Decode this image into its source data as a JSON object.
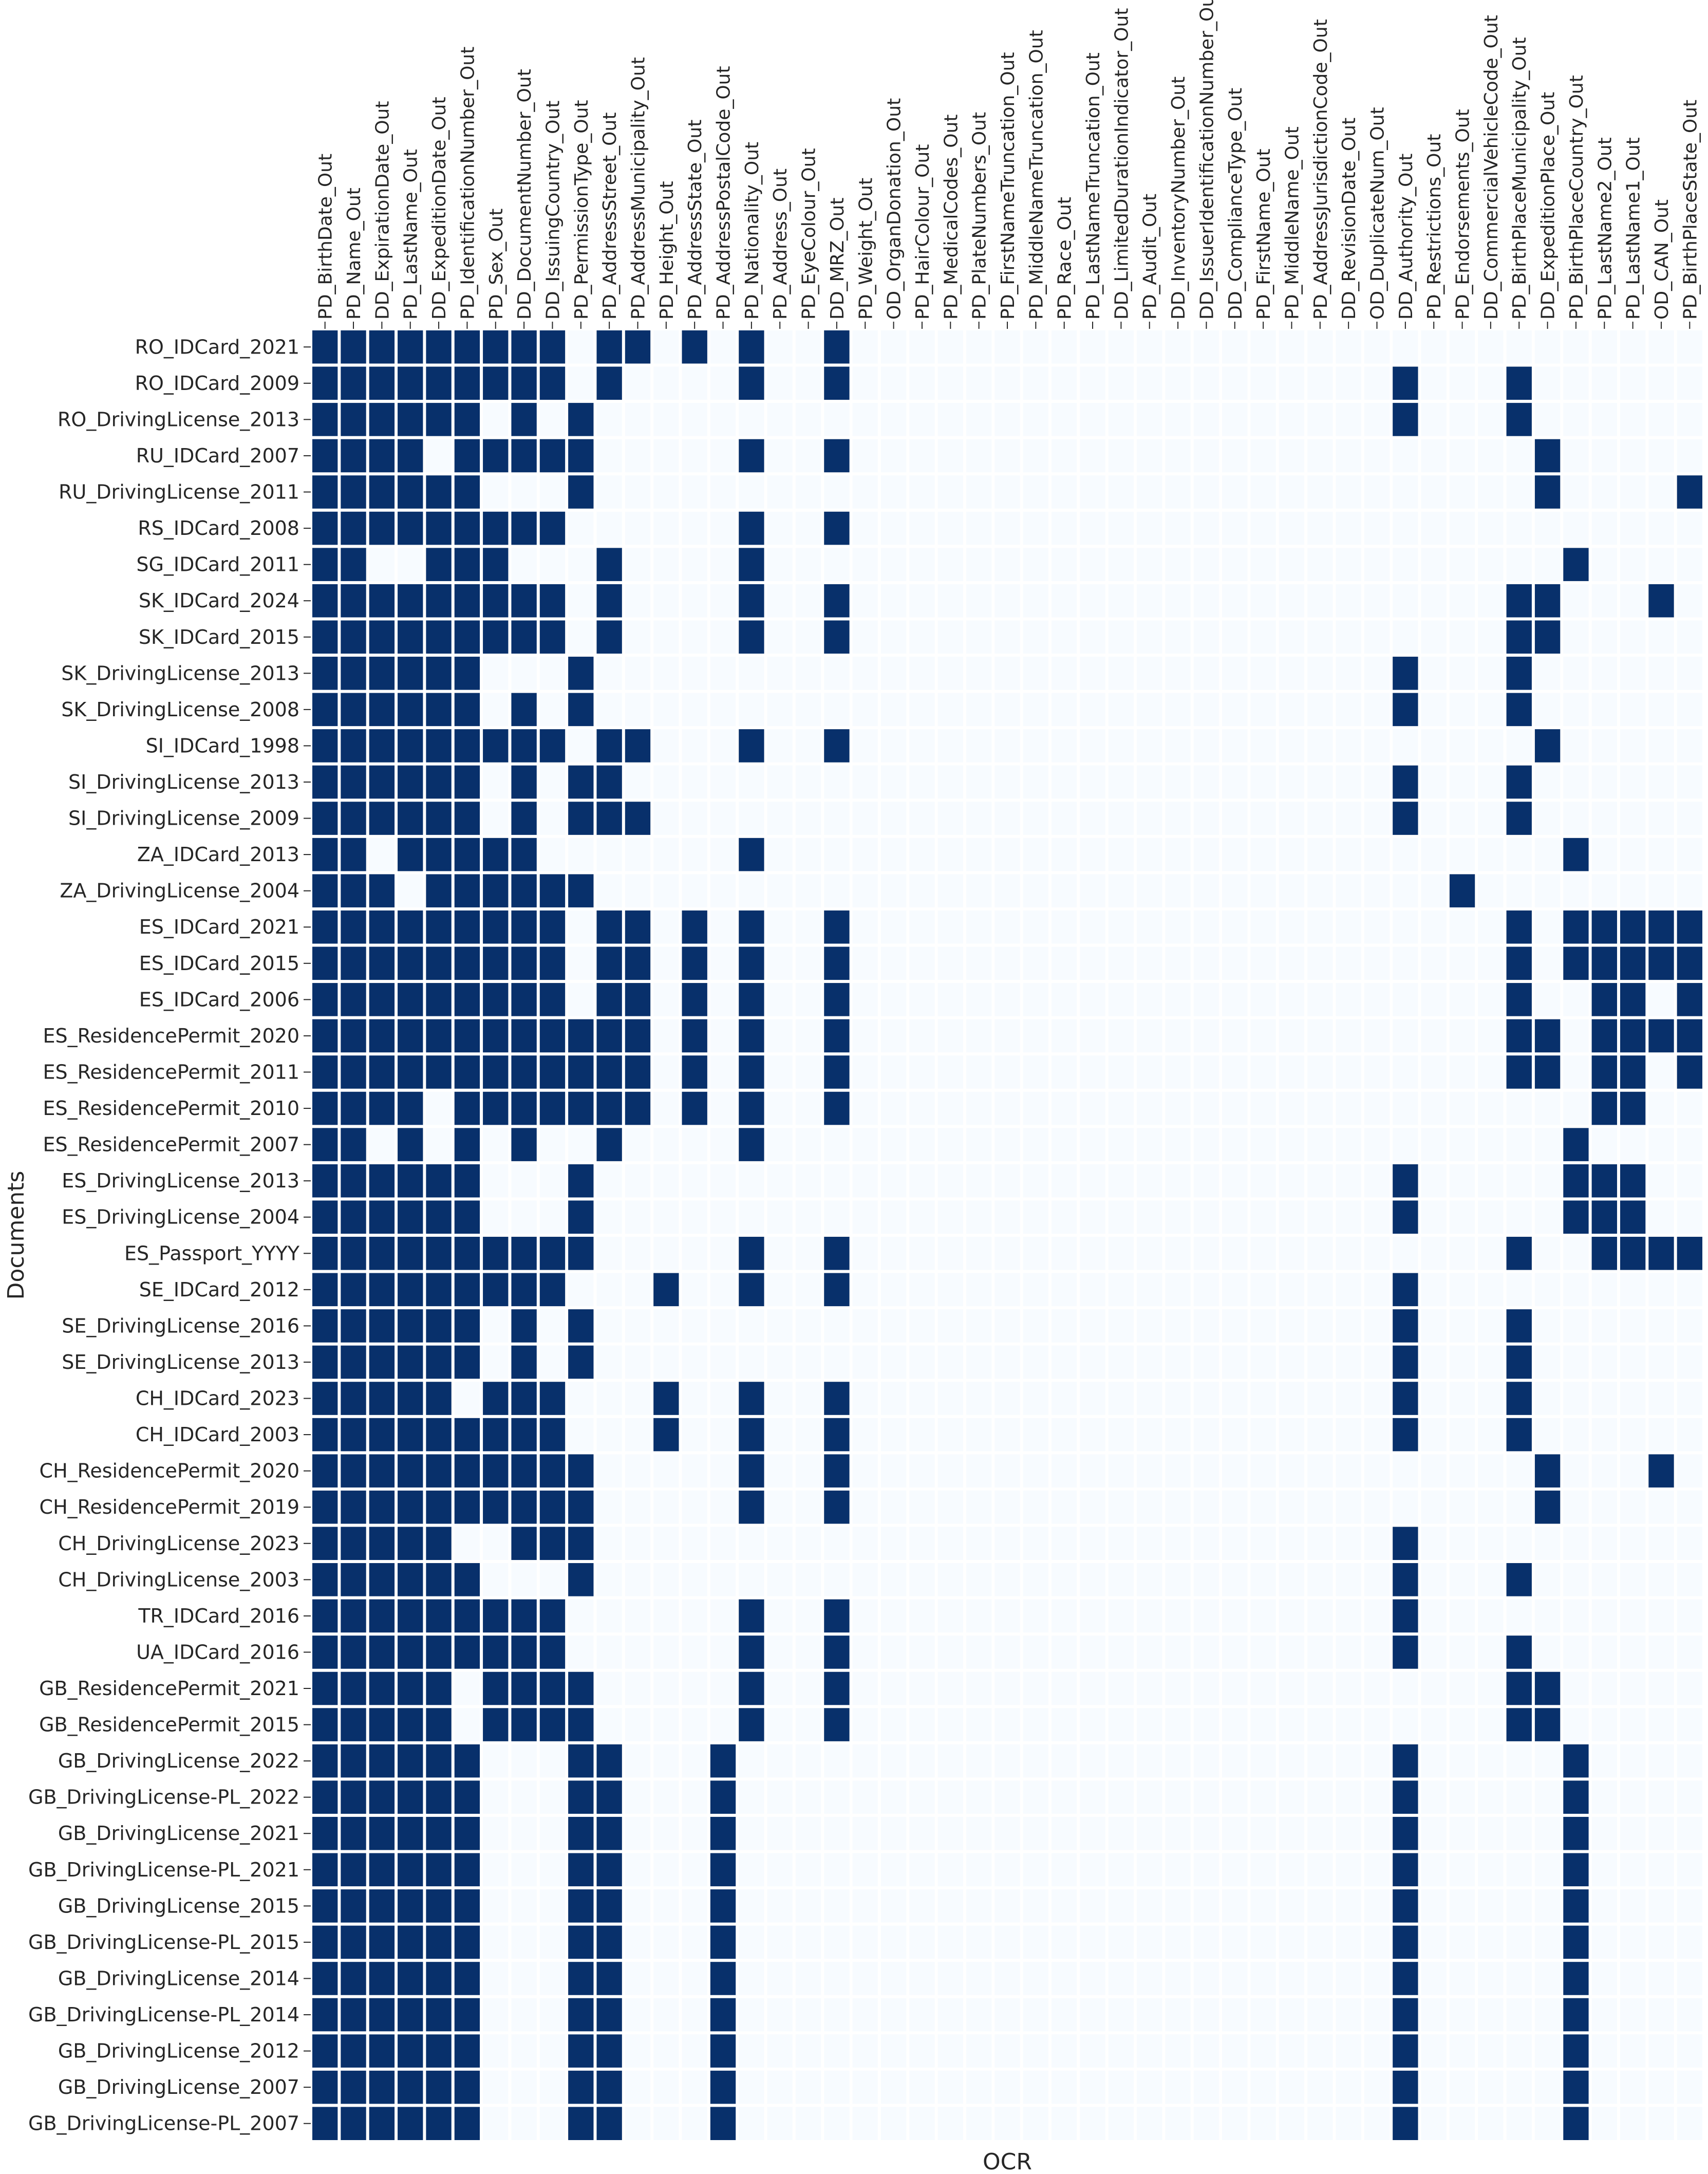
{
  "chart_data": {
    "type": "heatmap",
    "xlabel": "OCR",
    "ylabel": "Documents",
    "colors": {
      "present": "#08306b",
      "absent": "#f7fbff",
      "gridline": "#ffffff"
    },
    "legend": "none",
    "columns": [
      "PD_BirthDate_Out",
      "PD_Name_Out",
      "DD_ExpirationDate_Out",
      "PD_LastName_Out",
      "DD_ExpeditionDate_Out",
      "PD_IdentificationNumber_Out",
      "PD_Sex_Out",
      "DD_DocumentNumber_Out",
      "DD_IssuingCountry_Out",
      "PD_PermissionType_Out",
      "PD_AddressStreet_Out",
      "PD_AddressMunicipality_Out",
      "PD_Height_Out",
      "PD_AddressState_Out",
      "PD_AddressPostalCode_Out",
      "PD_Nationality_Out",
      "PD_Address_Out",
      "PD_EyeColour_Out",
      "DD_MRZ_Out",
      "PD_Weight_Out",
      "OD_OrganDonation_Out",
      "PD_HairColour_Out",
      "PD_MedicalCodes_Out",
      "PD_PlateNumbers_Out",
      "PD_FirstNameTruncation_Out",
      "PD_MiddleNameTruncation_Out",
      "PD_Race_Out",
      "PD_LastNameTruncation_Out",
      "DD_LimitedDurationIndicator_Out",
      "PD_Audit_Out",
      "DD_InventoryNumber_Out",
      "DD_IssuerIdentificationNumber_Out",
      "DD_ComplianceType_Out",
      "PD_FirstName_Out",
      "PD_MiddleName_Out",
      "PD_AddressJurisdictionCode_Out",
      "DD_RevisionDate_Out",
      "OD_DuplicateNum_Out",
      "DD_Authority_Out",
      "PD_Restrictions_Out",
      "PD_Endorsements_Out",
      "DD_CommercialVehicleCode_Out",
      "PD_BirthPlaceMunicipality_Out",
      "DD_ExpeditionPlace_Out",
      "PD_BirthPlaceCountry_Out",
      "PD_LastName2_Out",
      "PD_LastName1_Out",
      "OD_CAN_Out",
      "PD_BirthPlaceState_Out"
    ],
    "rows": [
      "RO_IDCard_2021",
      "RO_IDCard_2009",
      "RO_DrivingLicense_2013",
      "RU_IDCard_2007",
      "RU_DrivingLicense_2011",
      "RS_IDCard_2008",
      "SG_IDCard_2011",
      "SK_IDCard_2024",
      "SK_IDCard_2015",
      "SK_DrivingLicense_2013",
      "SK_DrivingLicense_2008",
      "SI_IDCard_1998",
      "SI_DrivingLicense_2013",
      "SI_DrivingLicense_2009",
      "ZA_IDCard_2013",
      "ZA_DrivingLicense_2004",
      "ES_IDCard_2021",
      "ES_IDCard_2015",
      "ES_IDCard_2006",
      "ES_ResidencePermit_2020",
      "ES_ResidencePermit_2011",
      "ES_ResidencePermit_2010",
      "ES_ResidencePermit_2007",
      "ES_DrivingLicense_2013",
      "ES_DrivingLicense_2004",
      "ES_Passport_YYYY",
      "SE_IDCard_2012",
      "SE_DrivingLicense_2016",
      "SE_DrivingLicense_2013",
      "CH_IDCard_2023",
      "CH_IDCard_2003",
      "CH_ResidencePermit_2020",
      "CH_ResidencePermit_2019",
      "CH_DrivingLicense_2023",
      "CH_DrivingLicense_2003",
      "TR_IDCard_2016",
      "UA_IDCard_2016",
      "GB_ResidencePermit_2021",
      "GB_ResidencePermit_2015",
      "GB_DrivingLicense_2022",
      "GB_DrivingLicense-PL_2022",
      "GB_DrivingLicense_2021",
      "GB_DrivingLicense-PL_2021",
      "GB_DrivingLicense_2015",
      "GB_DrivingLicense-PL_2015",
      "GB_DrivingLicense_2014",
      "GB_DrivingLicense-PL_2014",
      "GB_DrivingLicense_2012",
      "GB_DrivingLicense_2007",
      "GB_DrivingLicense-PL_2007"
    ],
    "present_cells": [
      [
        0,
        1,
        2,
        3,
        4,
        5,
        6,
        7,
        8,
        10,
        11,
        13,
        15,
        18
      ],
      [
        0,
        1,
        2,
        3,
        4,
        5,
        6,
        7,
        8,
        10,
        15,
        18,
        38,
        42
      ],
      [
        0,
        1,
        2,
        3,
        4,
        5,
        7,
        9,
        38,
        42
      ],
      [
        0,
        1,
        2,
        3,
        5,
        6,
        7,
        8,
        9,
        15,
        18,
        43
      ],
      [
        0,
        1,
        2,
        3,
        4,
        5,
        9,
        43,
        48
      ],
      [
        0,
        1,
        2,
        3,
        4,
        5,
        6,
        7,
        8,
        15,
        18
      ],
      [
        0,
        1,
        4,
        5,
        6,
        10,
        15,
        44
      ],
      [
        0,
        1,
        2,
        3,
        4,
        5,
        6,
        7,
        8,
        10,
        15,
        18,
        42,
        43,
        47
      ],
      [
        0,
        1,
        2,
        3,
        4,
        5,
        6,
        7,
        8,
        10,
        15,
        18,
        42,
        43
      ],
      [
        0,
        1,
        2,
        3,
        4,
        5,
        9,
        38,
        42
      ],
      [
        0,
        1,
        2,
        3,
        4,
        5,
        7,
        9,
        38,
        42
      ],
      [
        0,
        1,
        2,
        3,
        4,
        5,
        6,
        7,
        8,
        10,
        11,
        15,
        18,
        43
      ],
      [
        0,
        1,
        2,
        3,
        4,
        5,
        7,
        9,
        10,
        38,
        42
      ],
      [
        0,
        1,
        2,
        3,
        4,
        5,
        7,
        9,
        10,
        11,
        38,
        42
      ],
      [
        0,
        1,
        3,
        4,
        5,
        6,
        7,
        15,
        44
      ],
      [
        0,
        1,
        2,
        4,
        5,
        6,
        7,
        8,
        9,
        40
      ],
      [
        0,
        1,
        2,
        3,
        4,
        5,
        6,
        7,
        8,
        10,
        11,
        13,
        15,
        18,
        42,
        44,
        45,
        46,
        47,
        48
      ],
      [
        0,
        1,
        2,
        3,
        4,
        5,
        6,
        7,
        8,
        10,
        11,
        13,
        15,
        18,
        42,
        44,
        45,
        46,
        47,
        48
      ],
      [
        0,
        1,
        2,
        3,
        4,
        5,
        6,
        7,
        8,
        10,
        11,
        13,
        15,
        18,
        42,
        45,
        46,
        48
      ],
      [
        0,
        1,
        2,
        3,
        4,
        5,
        6,
        7,
        8,
        9,
        10,
        11,
        13,
        15,
        18,
        42,
        43,
        45,
        46,
        47,
        48
      ],
      [
        0,
        1,
        2,
        3,
        4,
        5,
        6,
        7,
        8,
        9,
        10,
        11,
        13,
        15,
        18,
        42,
        43,
        45,
        46,
        48
      ],
      [
        0,
        1,
        2,
        3,
        5,
        6,
        7,
        8,
        9,
        10,
        11,
        13,
        15,
        18,
        45,
        46
      ],
      [
        0,
        1,
        3,
        5,
        7,
        10,
        15,
        44
      ],
      [
        0,
        1,
        2,
        3,
        4,
        5,
        9,
        38,
        44,
        45,
        46
      ],
      [
        0,
        1,
        2,
        3,
        4,
        5,
        9,
        38,
        44,
        45,
        46
      ],
      [
        0,
        1,
        2,
        3,
        4,
        5,
        6,
        7,
        8,
        9,
        15,
        18,
        42,
        45,
        46,
        47,
        48
      ],
      [
        0,
        1,
        2,
        3,
        4,
        5,
        6,
        7,
        8,
        12,
        15,
        18,
        38
      ],
      [
        0,
        1,
        2,
        3,
        4,
        5,
        7,
        9,
        38,
        42
      ],
      [
        0,
        1,
        2,
        3,
        4,
        5,
        7,
        9,
        38,
        42
      ],
      [
        0,
        1,
        2,
        3,
        4,
        6,
        7,
        8,
        12,
        15,
        18,
        38,
        42
      ],
      [
        0,
        1,
        2,
        3,
        4,
        5,
        6,
        7,
        8,
        12,
        15,
        18,
        38,
        42
      ],
      [
        0,
        1,
        2,
        3,
        4,
        5,
        6,
        7,
        8,
        9,
        15,
        18,
        43,
        47
      ],
      [
        0,
        1,
        2,
        3,
        4,
        5,
        6,
        7,
        8,
        9,
        15,
        18,
        43
      ],
      [
        0,
        1,
        2,
        3,
        4,
        7,
        8,
        9,
        38
      ],
      [
        0,
        1,
        2,
        3,
        4,
        5,
        9,
        38,
        42
      ],
      [
        0,
        1,
        2,
        3,
        4,
        5,
        6,
        7,
        8,
        15,
        18,
        38
      ],
      [
        0,
        1,
        2,
        3,
        4,
        5,
        6,
        7,
        8,
        15,
        18,
        38,
        42
      ],
      [
        0,
        1,
        2,
        3,
        4,
        6,
        7,
        8,
        9,
        15,
        18,
        42,
        43
      ],
      [
        0,
        1,
        2,
        3,
        4,
        6,
        7,
        8,
        9,
        15,
        18,
        42,
        43
      ],
      [
        0,
        1,
        2,
        3,
        4,
        5,
        9,
        10,
        14,
        38,
        44
      ],
      [
        0,
        1,
        2,
        3,
        4,
        5,
        9,
        10,
        14,
        38,
        44
      ],
      [
        0,
        1,
        2,
        3,
        4,
        5,
        9,
        10,
        14,
        38,
        44
      ],
      [
        0,
        1,
        2,
        3,
        4,
        5,
        9,
        10,
        14,
        38,
        44
      ],
      [
        0,
        1,
        2,
        3,
        4,
        5,
        9,
        10,
        14,
        38,
        44
      ],
      [
        0,
        1,
        2,
        3,
        4,
        5,
        9,
        10,
        14,
        38,
        44
      ],
      [
        0,
        1,
        2,
        3,
        4,
        5,
        9,
        10,
        14,
        38,
        44
      ],
      [
        0,
        1,
        2,
        3,
        4,
        5,
        9,
        10,
        14,
        38,
        44
      ],
      [
        0,
        1,
        2,
        3,
        4,
        5,
        9,
        10,
        14,
        38,
        44
      ],
      [
        0,
        1,
        2,
        3,
        4,
        5,
        9,
        10,
        14,
        38,
        44
      ],
      [
        0,
        1,
        2,
        3,
        4,
        5,
        9,
        10,
        14,
        38,
        44
      ]
    ]
  }
}
